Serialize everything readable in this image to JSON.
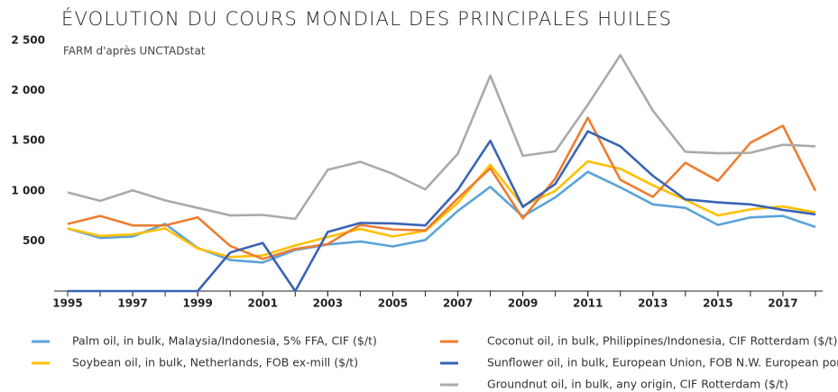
{
  "chart_data": {
    "type": "line",
    "title": "ÉVOLUTION DU COURS MONDIAL DES PRINCIPALES HUILES",
    "subtitle": "FARM d'après UNCTADstat",
    "x": [
      1995,
      1996,
      1997,
      1998,
      1999,
      2000,
      2001,
      2002,
      2003,
      2004,
      2005,
      2006,
      2007,
      2008,
      2009,
      2010,
      2011,
      2012,
      2013,
      2014,
      2015,
      2016,
      2017,
      2018
    ],
    "xlim": [
      1995,
      2018
    ],
    "xticks": [
      1995,
      1997,
      1999,
      2001,
      2003,
      2005,
      2007,
      2009,
      2011,
      2013,
      2015,
      2017
    ],
    "ylim": [
      0,
      2500
    ],
    "yticks": [
      500,
      {
        "value": 1000,
        "label": "1 000"
      },
      {
        "value": 1500,
        "label": "1 500"
      },
      {
        "value": 2000,
        "label": "2 000"
      },
      {
        "value": 2500,
        "label": "2 500"
      }
    ],
    "grid": false,
    "series": [
      {
        "name": "Palm oil, in bulk, Malaysia/Indonesia, 5% FFA, CIF ($/t)",
        "color": "#5aa3d9",
        "values": [
          625,
          530,
          545,
          670,
          430,
          310,
          285,
          410,
          465,
          495,
          445,
          510,
          800,
          1040,
          745,
          935,
          1190,
          1035,
          865,
          830,
          660,
          735,
          750,
          640
        ]
      },
      {
        "name": "Soybean oil, in bulk, Netherlands, FOB ex-mill ($/t)",
        "color": "#ffc000",
        "values": [
          625,
          550,
          565,
          625,
          425,
          340,
          355,
          455,
          540,
          620,
          545,
          600,
          880,
          1260,
          850,
          1000,
          1295,
          1220,
          1055,
          910,
          755,
          815,
          845,
          785
        ]
      },
      {
        "name": "Coconut oil, in bulk, Philippines/Indonesia, CIF Rotterdam ($/t)",
        "color": "#ed7d31",
        "values": [
          670,
          750,
          655,
          655,
          735,
          450,
          320,
          420,
          470,
          660,
          615,
          605,
          925,
          1225,
          725,
          1125,
          1730,
          1110,
          940,
          1280,
          1100,
          1480,
          1650,
          1000
        ]
      },
      {
        "name": "Sunflower oil, in bulk, European Union, FOB N.W. European ports ($/t)",
        "color": "#3a64b5",
        "values": [
          0,
          0,
          0,
          0,
          0,
          385,
          480,
          0,
          590,
          680,
          675,
          655,
          1010,
          1500,
          840,
          1070,
          1595,
          1445,
          1150,
          915,
          885,
          865,
          810,
          765
        ]
      },
      {
        "name": "Groundnut oil, in bulk, any origin, CIF Rotterdam ($/t)",
        "color": "#aaaaaa",
        "values": [
          985,
          900,
          1005,
          905,
          830,
          755,
          760,
          720,
          1210,
          1290,
          1170,
          1015,
          1370,
          2150,
          1350,
          1395,
          1860,
          2355,
          1800,
          1390,
          1375,
          1380,
          1460,
          1445
        ]
      }
    ]
  }
}
